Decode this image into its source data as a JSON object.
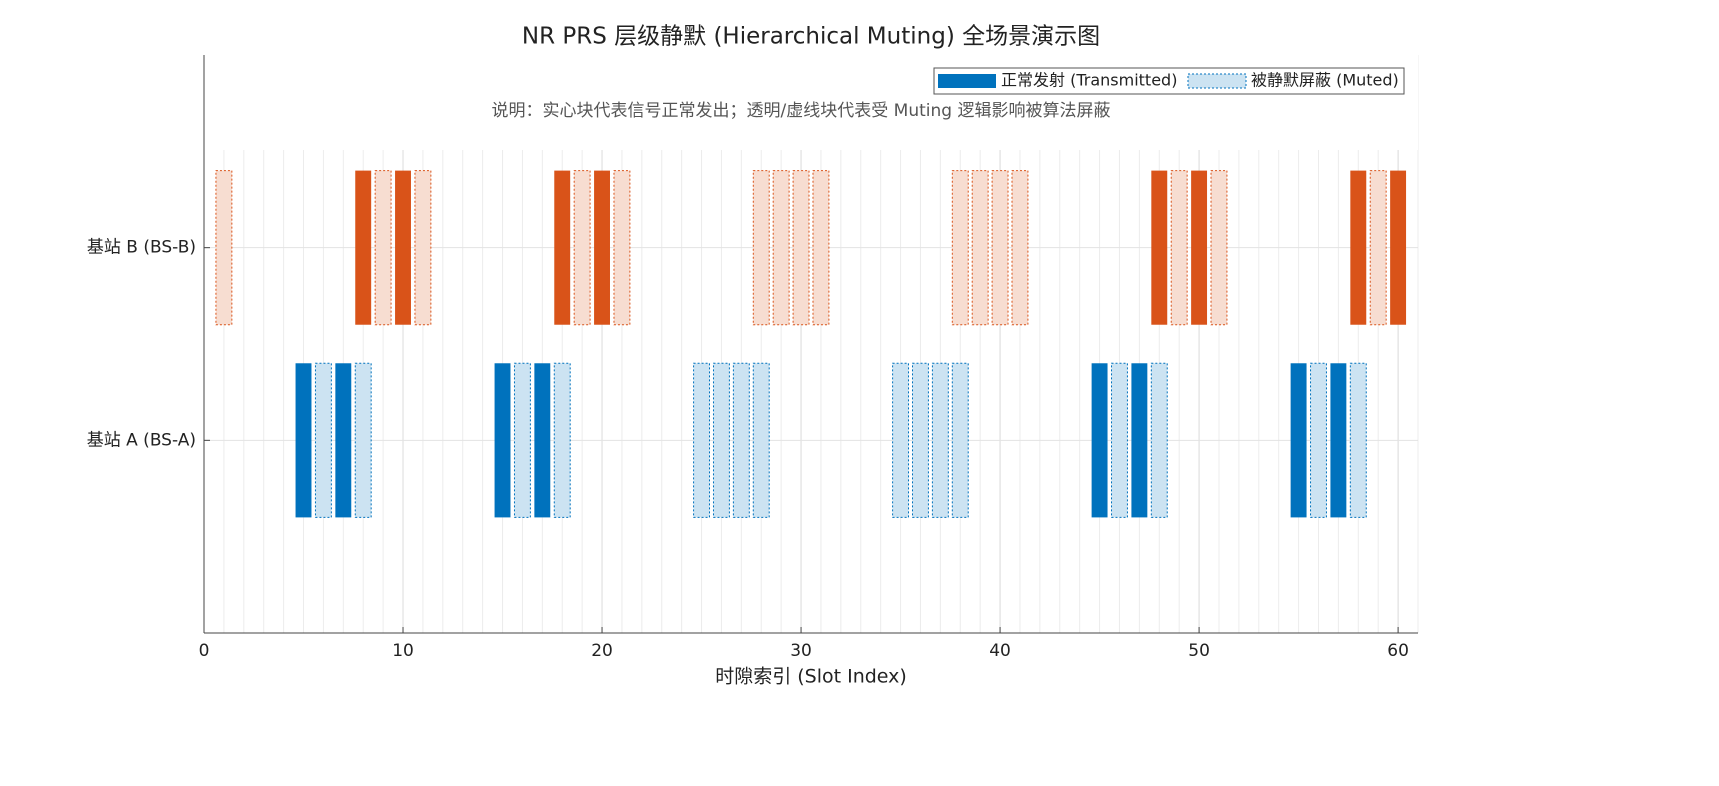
{
  "chart_data": {
    "type": "slot-bar",
    "title": "NR PRS 层级静默 (Hierarchical Muting) 全场景演示图",
    "annotation": "说明：实心块代表信号正常发出；透明/虚线块代表受 Muting 逻辑影响被算法屏蔽",
    "x_label": "时隙索引 (Slot Index)",
    "categories": [
      "基站 A (BS-A)",
      "基站 B (BS-B)"
    ],
    "colors": [
      "#0072bd",
      "#d95319"
    ],
    "series": [
      {
        "name": "正常发射 (Transmitted)",
        "style": "solid",
        "slots": [
          [
            5,
            7,
            15,
            17,
            45,
            47,
            55,
            57
          ],
          [
            8,
            10,
            18,
            20,
            48,
            50,
            58,
            60
          ]
        ]
      },
      {
        "name": "被静默屏蔽 (Muted)",
        "style": "muted",
        "slots": [
          [
            6,
            8,
            16,
            18,
            25,
            26,
            27,
            28,
            35,
            36,
            37,
            38,
            46,
            48,
            56,
            58
          ],
          [
            1,
            9,
            11,
            19,
            21,
            28,
            29,
            30,
            31,
            38,
            39,
            40,
            41,
            49,
            51,
            59
          ]
        ]
      }
    ],
    "xlim": [
      0,
      61
    ],
    "xticks": [
      0,
      10,
      20,
      30,
      40,
      50,
      60
    ],
    "grid": true,
    "minor_grid": true
  }
}
